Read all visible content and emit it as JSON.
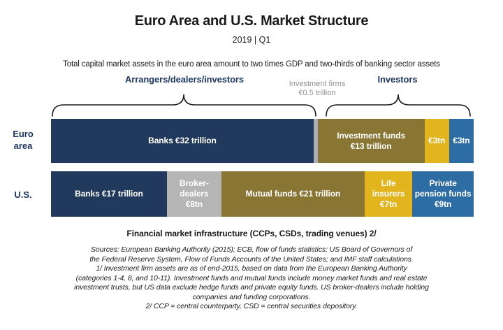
{
  "header": {
    "title": "Euro Area and U.S. Market Structure",
    "period": "2019 | Q1",
    "lead": "Total capital market assets in the euro area amount to two times GDP and two-thirds of banking sector assets"
  },
  "annotations": {
    "left_group": "Arrangers/dealers/investors",
    "right_group": "Investors",
    "investment_firms_callout": "Investment firms\n€0.5 trillion"
  },
  "chart_data": {
    "type": "bar",
    "variant": "horizontal-stacked",
    "unit": "EUR trillions",
    "title": "Euro Area and U.S. Market Structure",
    "legend_position": "none",
    "grid": false,
    "rows": [
      {
        "label": "Euro area",
        "label_display": "Euro\narea",
        "total": 51.5,
        "segments": [
          {
            "name": "banks",
            "display": "Banks €32 trillion",
            "value": 32,
            "color": "#21395C"
          },
          {
            "name": "investment-firms",
            "display": "",
            "value": 0.5,
            "color": "#A9ADB6"
          },
          {
            "name": "investment-funds",
            "display": "Investment funds\n€13 trillion",
            "value": 13,
            "color": "#8A7634"
          },
          {
            "name": "insurers",
            "display": "€3tn",
            "value": 3,
            "color": "#E2B41E"
          },
          {
            "name": "pension-funds",
            "display": "€3tn",
            "value": 3,
            "color": "#2E6CA4"
          }
        ]
      },
      {
        "label": "U.S.",
        "label_display": "U.S.",
        "total": 62,
        "segments": [
          {
            "name": "banks",
            "display": "Banks €17 trillion",
            "value": 17,
            "color": "#21395C"
          },
          {
            "name": "broker-dealers",
            "display": "Broker-\ndealers\n€8tn",
            "value": 8,
            "color": "#B5B5B5"
          },
          {
            "name": "mutual-funds",
            "display": "Mutual funds €21 trillion",
            "value": 21,
            "color": "#8A7634"
          },
          {
            "name": "life-insurers",
            "display": "Life\ninsurers\n€7tn",
            "value": 7,
            "color": "#E2B41E"
          },
          {
            "name": "private-pension-funds",
            "display": "Private\npension funds\n€9tn",
            "value": 9,
            "color": "#2E6CA4"
          }
        ]
      }
    ]
  },
  "footer": {
    "fmi": "Financial market infrastructure (CCPs, CSDs, trading venues) 2/",
    "sources": "Sources: European Banking Authority (2015); ECB, flow of funds statistics; US Board of Governors of\nthe Federal Reserve System, Flow of Funds Accounts of the United States; and IMF staff calculations.",
    "note1": "1/ Investment firm assets are as of end-2015, based on data from the European Banking Authority\n(categories 1-4, 8, and 10-11). Investment funds and mutual funds include money market funds and real estate\ninvestment trusts, but US data exclude hedge funds and private equity funds. US broker-dealers include holding\ncompanies and funding corporations.",
    "note2": "2/ CCP = central counterparty, CSD = central securities depository."
  }
}
